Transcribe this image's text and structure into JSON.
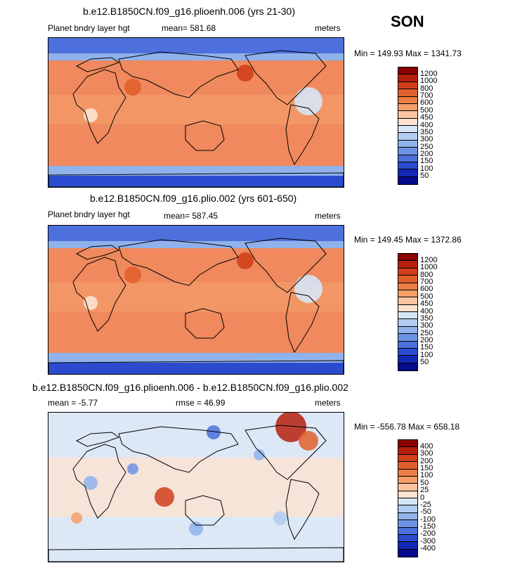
{
  "season": "SON",
  "panels": [
    {
      "title": "b.e12.B1850CN.f09_g16.plioenh.006 (yrs 21-30)",
      "variable": "Planet bndry layer hgt",
      "stat": "mean= 581.68",
      "units": "meters",
      "minmax": "Min = 149.93 Max = 1341.73",
      "colorbar": {
        "labels": [
          "1200",
          "1000",
          "800",
          "700",
          "600",
          "500",
          "450",
          "400",
          "350",
          "300",
          "250",
          "200",
          "150",
          "100",
          "50"
        ],
        "colors": [
          "#8b0000",
          "#b5200d",
          "#d0401b",
          "#e0602c",
          "#ec7d44",
          "#f59e6a",
          "#fbc49f",
          "#fde3cf",
          "#d6e6f7",
          "#b2cdf0",
          "#8fb2eb",
          "#6d93e5",
          "#4d70dc",
          "#2b4bcf",
          "#1227b5",
          "#030a8c"
        ]
      }
    },
    {
      "title": "b.e12.B1850CN.f09_g16.plio.002 (yrs 601-650)",
      "variable": "Planet bndry layer hgt",
      "stat": "mean= 587.45",
      "units": "meters",
      "minmax": "Min = 149.45 Max = 1372.86",
      "colorbar": {
        "labels": [
          "1200",
          "1000",
          "800",
          "700",
          "600",
          "500",
          "450",
          "400",
          "350",
          "300",
          "250",
          "200",
          "150",
          "100",
          "50"
        ],
        "colors": [
          "#8b0000",
          "#b5200d",
          "#d0401b",
          "#e0602c",
          "#ec7d44",
          "#f59e6a",
          "#fbc49f",
          "#fde3cf",
          "#d6e6f7",
          "#b2cdf0",
          "#8fb2eb",
          "#6d93e5",
          "#4d70dc",
          "#2b4bcf",
          "#1227b5",
          "#030a8c"
        ]
      }
    },
    {
      "title": "b.e12.B1850CN.f09_g16.plioenh.006 - b.e12.B1850CN.f09_g16.plio.002",
      "variable": "mean =   -5.77",
      "stat": "rmse =   46.99",
      "units": "meters",
      "minmax": "Min = -556.78 Max = 658.18",
      "colorbar": {
        "labels": [
          "400",
          "300",
          "200",
          "150",
          "100",
          "50",
          "25",
          "0",
          "-25",
          "-50",
          "-100",
          "-150",
          "-200",
          "-300",
          "-400"
        ],
        "colors": [
          "#8b0000",
          "#b5200d",
          "#d0401b",
          "#e0602c",
          "#ec7d44",
          "#f59e6a",
          "#fbc49f",
          "#fde3cf",
          "#d6e6f7",
          "#b2cdf0",
          "#8fb2eb",
          "#6d93e5",
          "#4d70dc",
          "#2b4bcf",
          "#1227b5",
          "#030a8c"
        ]
      }
    }
  ]
}
